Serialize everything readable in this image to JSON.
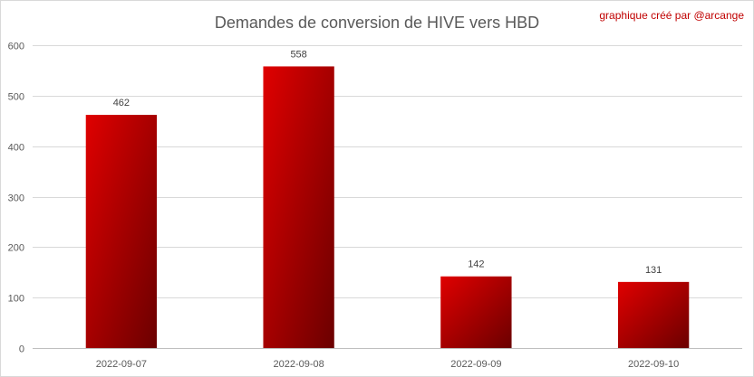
{
  "chart_data": {
    "type": "bar",
    "title": "Demandes de conversion de HIVE vers HBD",
    "credit": "graphique créé par @arcange",
    "categories": [
      "2022-09-07",
      "2022-09-08",
      "2022-09-09",
      "2022-09-10"
    ],
    "values": [
      462,
      558,
      142,
      131
    ],
    "ylim": [
      0,
      600
    ],
    "yticks": [
      0,
      100,
      200,
      300,
      400,
      500,
      600
    ],
    "xlabel": "",
    "ylabel": "",
    "grid": true,
    "legend": "none",
    "colors": {
      "bar_light": "#e00000",
      "bar_dark": "#6b0000"
    }
  }
}
